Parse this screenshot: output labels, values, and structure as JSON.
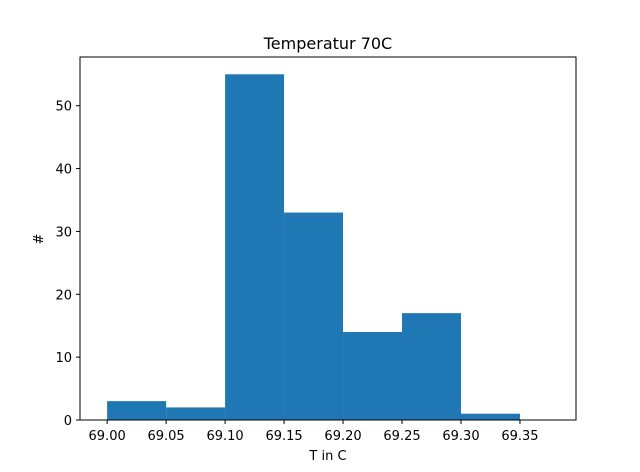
{
  "chart_data": {
    "type": "bar",
    "title": "Temperatur 70C",
    "xlabel": "T in C",
    "ylabel": "#",
    "bar_color": "#1f77b4",
    "bins": [
      {
        "x0": 69.0,
        "x1": 69.05,
        "count": 3
      },
      {
        "x0": 69.05,
        "x1": 69.1,
        "count": 2
      },
      {
        "x0": 69.1,
        "x1": 69.15,
        "count": 55
      },
      {
        "x0": 69.15,
        "x1": 69.2,
        "count": 33
      },
      {
        "x0": 69.2,
        "x1": 69.25,
        "count": 14
      },
      {
        "x0": 69.25,
        "x1": 69.3,
        "count": 17
      },
      {
        "x0": 69.3,
        "x1": 69.35,
        "count": 1
      },
      {
        "x0": 69.35,
        "x1": 69.4,
        "count": 0
      }
    ],
    "xlim": [
      68.977,
      69.3975
    ],
    "ylim": [
      0,
      57.75
    ],
    "xticks": [
      {
        "value": 69.0,
        "label": "69.00"
      },
      {
        "value": 69.05,
        "label": "69.05"
      },
      {
        "value": 69.1,
        "label": "69.10"
      },
      {
        "value": 69.15,
        "label": "69.15"
      },
      {
        "value": 69.2,
        "label": "69.20"
      },
      {
        "value": 69.25,
        "label": "69.25"
      },
      {
        "value": 69.3,
        "label": "69.30"
      },
      {
        "value": 69.35,
        "label": "69.35"
      }
    ],
    "yticks": [
      {
        "value": 0,
        "label": "0"
      },
      {
        "value": 10,
        "label": "10"
      },
      {
        "value": 20,
        "label": "20"
      },
      {
        "value": 30,
        "label": "30"
      },
      {
        "value": 40,
        "label": "40"
      },
      {
        "value": 50,
        "label": "50"
      }
    ],
    "grid": false,
    "legend": "none"
  }
}
